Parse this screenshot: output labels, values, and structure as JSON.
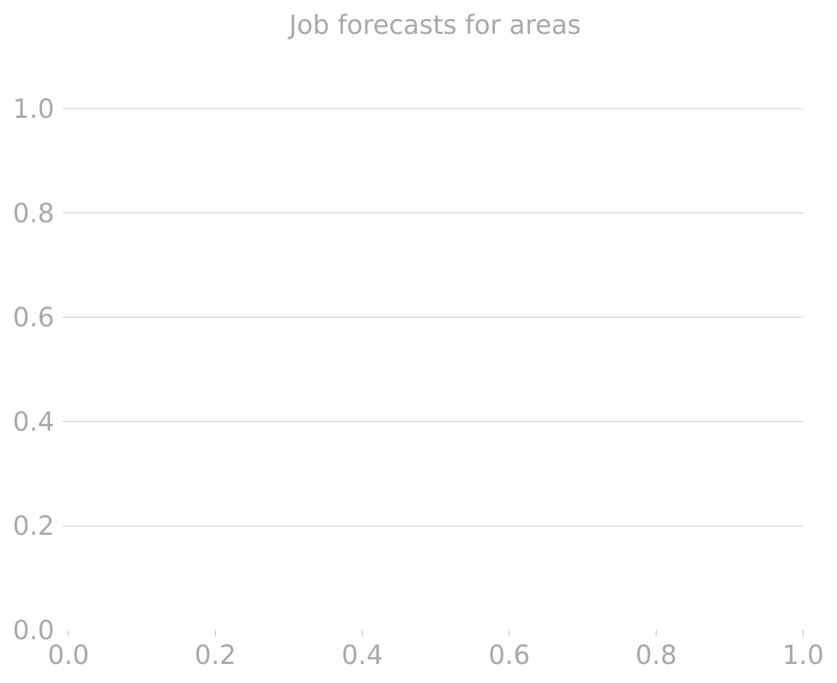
{
  "chart_data": {
    "type": "line",
    "title": "Job forecasts for areas",
    "xlabel": "",
    "ylabel": "",
    "xlim": [
      0.0,
      1.0
    ],
    "ylim": [
      0.0,
      1.0
    ],
    "xticks": [
      "0.0",
      "0.2",
      "0.4",
      "0.6",
      "0.8",
      "1.0"
    ],
    "yticks": [
      "0.0",
      "0.2",
      "0.4",
      "0.6",
      "0.8",
      "1.0"
    ],
    "grid": "horizontal",
    "series": []
  },
  "colors": {
    "text": "#a9a9a9",
    "grid": "#c4c4c4",
    "tick": "#b8b8b8",
    "background": "#ffffff"
  }
}
